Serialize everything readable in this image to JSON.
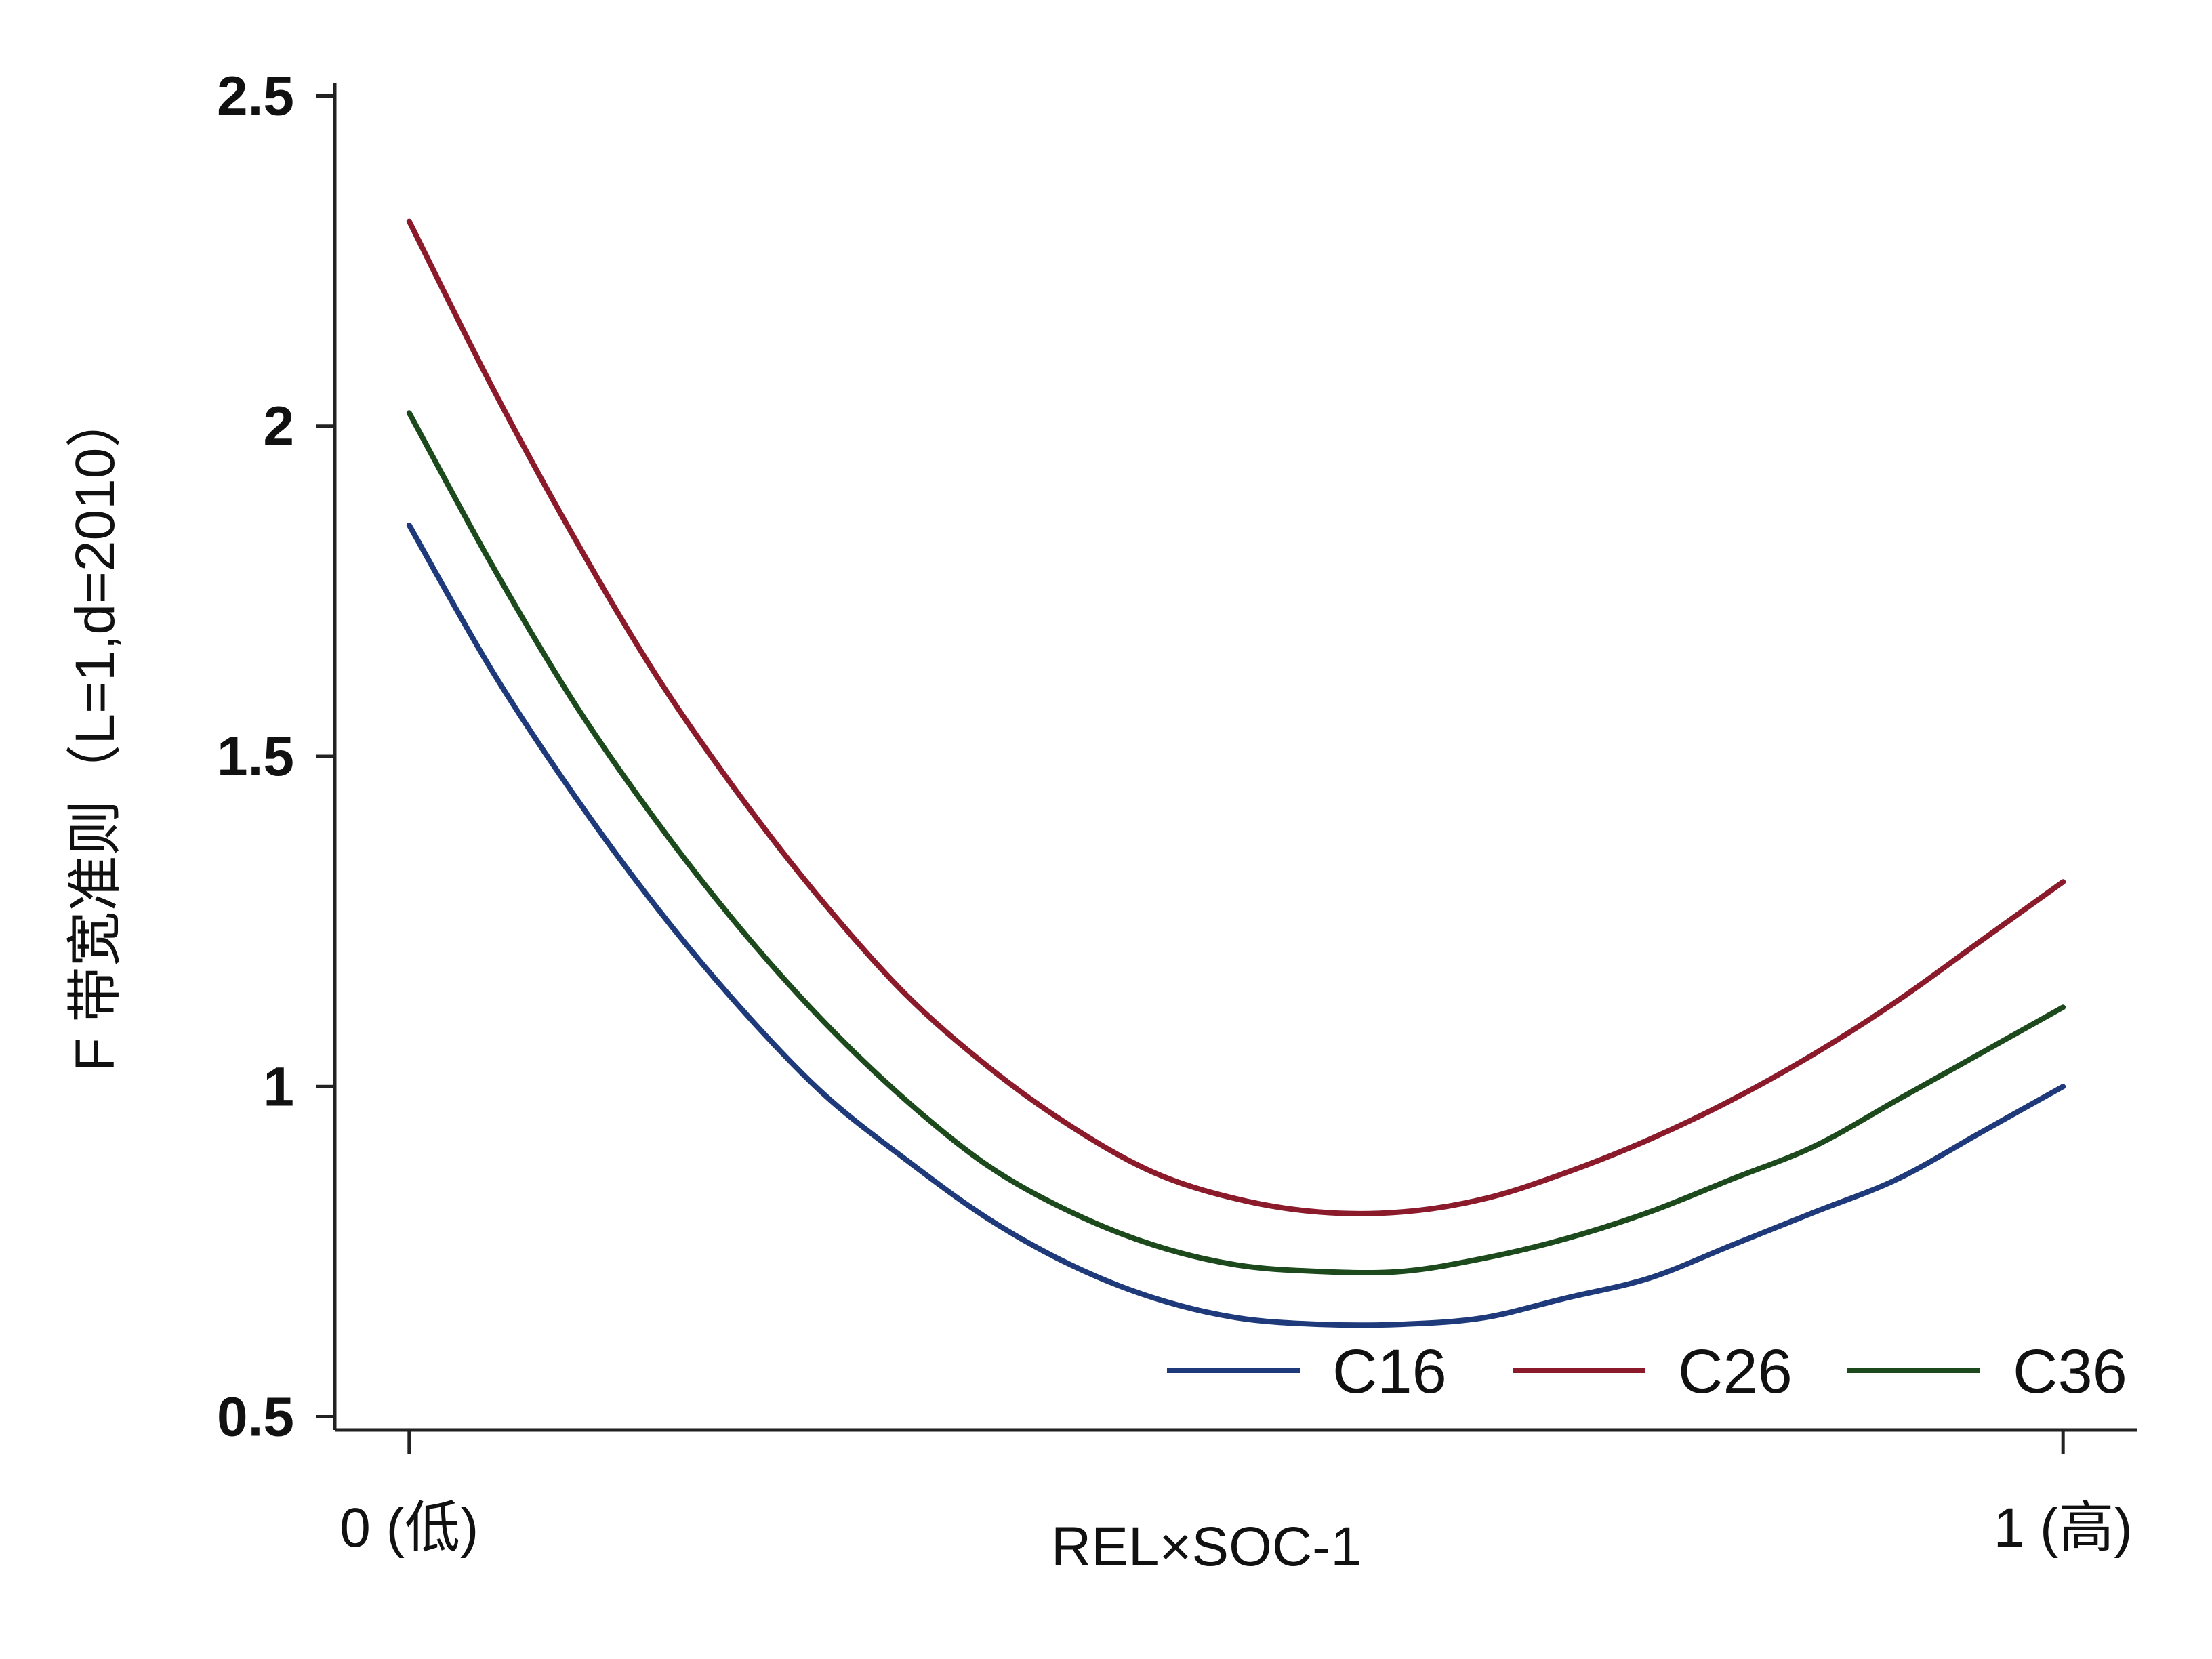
{
  "chart_data": {
    "type": "line",
    "xlabel": "REL×SOC-1",
    "ylabel": "F 带宽准则（L=1,d=2010）",
    "x_ticks": [
      {
        "value": 0,
        "label": "0 (低)"
      },
      {
        "value": 1,
        "label": "1 (高)"
      }
    ],
    "y_ticks": [
      {
        "value": 0.5,
        "label": "0.5"
      },
      {
        "value": 1,
        "label": "1"
      },
      {
        "value": 1.5,
        "label": "1.5"
      },
      {
        "value": 2,
        "label": "2"
      },
      {
        "value": 2.5,
        "label": "2.5"
      }
    ],
    "xlim": [
      -0.045,
      1.045
    ],
    "ylim": [
      0.48,
      2.52
    ],
    "grid": false,
    "legend_position": "bottom-right",
    "x": [
      0,
      0.05,
      0.1,
      0.15,
      0.2,
      0.25,
      0.3,
      0.35,
      0.4,
      0.45,
      0.5,
      0.55,
      0.6,
      0.65,
      0.7,
      0.75,
      0.8,
      0.85,
      0.9,
      0.95,
      1
    ],
    "series": [
      {
        "name": "C16",
        "color": "#1f3a7a",
        "values": [
          1.85,
          1.63,
          1.44,
          1.27,
          1.12,
          0.99,
          0.89,
          0.8,
          0.73,
          0.68,
          0.65,
          0.64,
          0.64,
          0.65,
          0.68,
          0.71,
          0.76,
          0.81,
          0.86,
          0.93,
          1.0
        ]
      },
      {
        "name": "C26",
        "color": "#8b1a2b",
        "values": [
          2.31,
          2.06,
          1.83,
          1.62,
          1.44,
          1.28,
          1.14,
          1.03,
          0.94,
          0.87,
          0.83,
          0.81,
          0.81,
          0.83,
          0.87,
          0.92,
          0.98,
          1.05,
          1.13,
          1.22,
          1.31
        ]
      },
      {
        "name": "C36",
        "color": "#1d4a1d",
        "values": [
          2.02,
          1.79,
          1.58,
          1.4,
          1.24,
          1.1,
          0.98,
          0.88,
          0.81,
          0.76,
          0.73,
          0.72,
          0.72,
          0.74,
          0.77,
          0.81,
          0.86,
          0.91,
          0.98,
          1.05,
          1.12
        ]
      }
    ]
  }
}
